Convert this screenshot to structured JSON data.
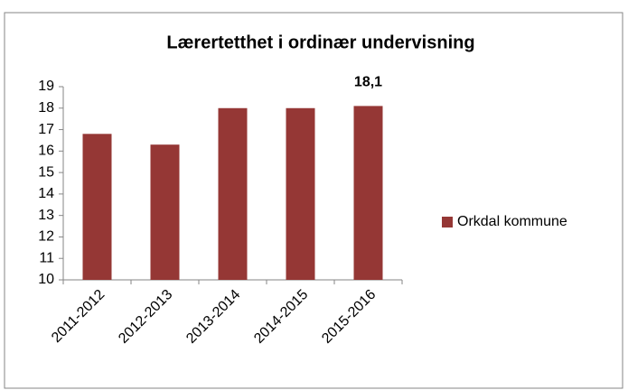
{
  "chart_data": {
    "type": "bar",
    "title": "Lærertetthet i ordinær undervisning",
    "categories": [
      "2011-2012",
      "2012-2013",
      "2013-2014",
      "2014-2015",
      "2015-2016"
    ],
    "series": [
      {
        "name": "Orkdal kommune",
        "color": "#953735",
        "values": [
          16.8,
          16.3,
          18.0,
          18.0,
          18.1
        ],
        "value_labels": [
          null,
          null,
          null,
          null,
          "18,1"
        ]
      }
    ],
    "ylim": [
      10,
      19
    ],
    "yticks": [
      10,
      11,
      12,
      13,
      14,
      15,
      16,
      17,
      18,
      19
    ],
    "grid": false,
    "legend": "right"
  }
}
